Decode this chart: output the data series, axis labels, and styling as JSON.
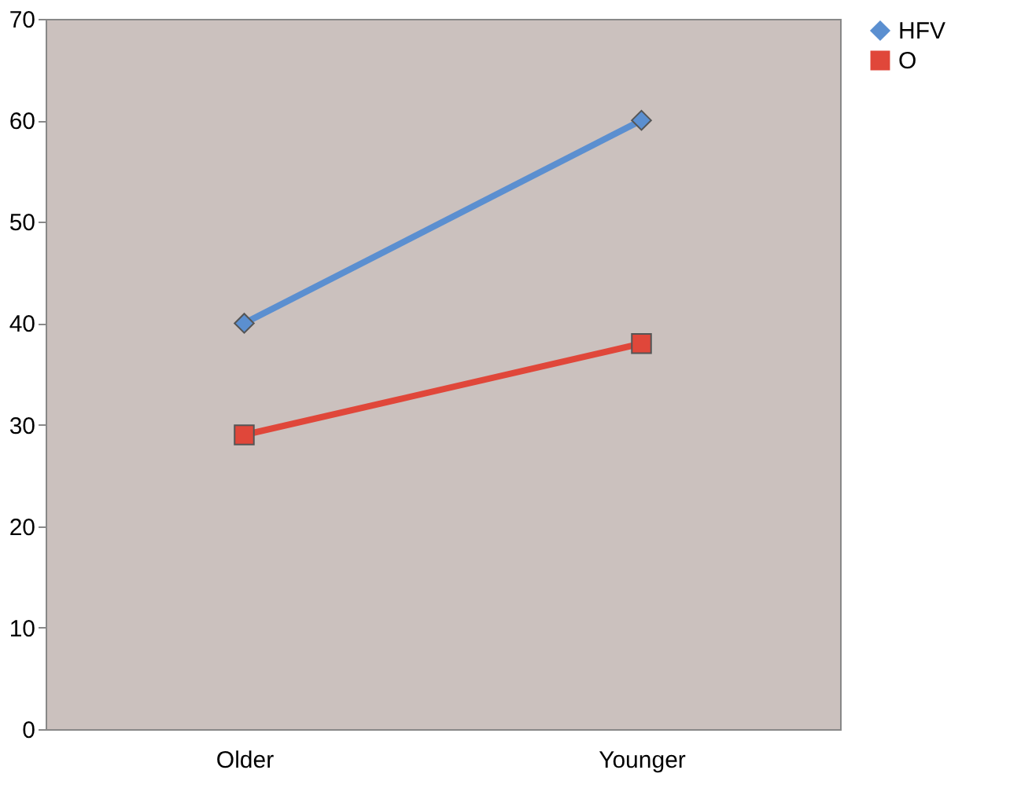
{
  "chart_data": {
    "type": "line",
    "categories": [
      "Older",
      "Younger"
    ],
    "series": [
      {
        "name": "HFV",
        "color": "#5b8fd0",
        "marker": "diamond",
        "values": [
          40,
          60
        ]
      },
      {
        "name": "O",
        "color": "#e0473a",
        "marker": "square",
        "values": [
          29,
          38
        ]
      }
    ],
    "ylim": [
      0,
      70
    ],
    "yticks": [
      0,
      10,
      20,
      30,
      40,
      50,
      60,
      70
    ],
    "grid": false,
    "legend": "right",
    "line_style": "solid"
  }
}
